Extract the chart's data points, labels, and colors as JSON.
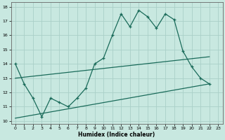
{
  "title": "",
  "xlabel": "Humidex (Indice chaleur)",
  "ylabel": "",
  "xlim": [
    -0.5,
    23.5
  ],
  "ylim": [
    9.8,
    18.3
  ],
  "yticks": [
    10,
    11,
    12,
    13,
    14,
    15,
    16,
    17,
    18
  ],
  "xticks": [
    0,
    1,
    2,
    3,
    4,
    5,
    6,
    7,
    8,
    9,
    10,
    11,
    12,
    13,
    14,
    15,
    16,
    17,
    18,
    19,
    20,
    21,
    22,
    23
  ],
  "bg_color": "#c8e8e0",
  "grid_color": "#aacfc8",
  "line_color": "#1a6b5a",
  "line1_x": [
    0,
    1,
    2,
    3,
    4,
    5,
    6,
    7,
    8,
    9,
    10,
    11,
    12,
    13,
    14,
    15,
    16,
    17,
    18,
    19,
    20,
    21,
    22
  ],
  "line1_y": [
    14.0,
    12.6,
    11.6,
    10.3,
    11.6,
    11.3,
    11.0,
    11.6,
    12.3,
    14.0,
    14.4,
    16.0,
    17.5,
    16.6,
    17.75,
    17.3,
    16.5,
    17.5,
    17.1,
    14.9,
    13.8,
    13.0,
    12.6
  ],
  "line2_x": [
    0,
    22
  ],
  "line2_y": [
    13.0,
    14.5
  ],
  "line3_x": [
    0,
    22
  ],
  "line3_y": [
    10.2,
    12.6
  ]
}
